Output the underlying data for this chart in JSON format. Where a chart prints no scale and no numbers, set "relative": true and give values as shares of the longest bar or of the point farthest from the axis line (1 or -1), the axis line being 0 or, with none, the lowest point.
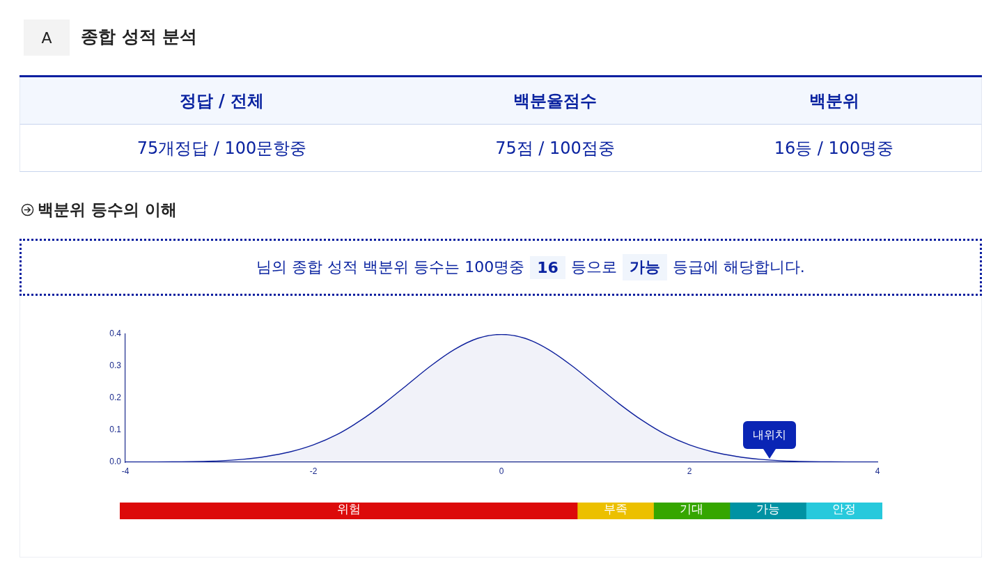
{
  "chart_data": [
    {
      "type": "area",
      "title": "종합 성적 분석",
      "subtitle": "백분위 등수의 이해",
      "annotations": [
        "A",
        "정답 / 전체",
        "백분율점수",
        "백분위",
        "75개정답 / 100문항중",
        "75점 / 100점중",
        "16등 / 100명중",
        "님의 종합 성적 백분위 등수는 100명중",
        "16",
        "등으로",
        "가능",
        "등급에 해당합니다.",
        {
          "text": "내위치",
          "x": 2.85,
          "y": 0.01
        }
      ],
      "x": [
        -4,
        -3.5,
        -3,
        -2.75,
        -2.5,
        -2.25,
        -2,
        -1.75,
        -1.5,
        -1.25,
        -1,
        -0.75,
        -0.5,
        -0.25,
        0,
        0.25,
        0.5,
        0.75,
        1,
        1.25,
        1.5,
        1.75,
        2,
        2.25,
        2.5,
        2.75,
        3,
        3.5,
        4
      ],
      "series": [
        {
          "color": "#0d1f9c",
          "values": [
            0,
            0.001,
            0.004,
            0.009,
            0.018,
            0.032,
            0.054,
            0.086,
            0.13,
            0.183,
            0.242,
            0.301,
            0.352,
            0.387,
            0.399,
            0.387,
            0.352,
            0.301,
            0.242,
            0.183,
            0.13,
            0.086,
            0.054,
            0.032,
            0.018,
            0.009,
            0.004,
            0.001,
            0
          ]
        }
      ],
      "xlim": [
        -4,
        4
      ],
      "ylim": [
        0,
        0.4
      ],
      "xticks": [
        -4,
        -2,
        0,
        2,
        4
      ],
      "yticks": [
        {
          "value": 0,
          "label": "0.0"
        },
        0.1,
        0.2,
        0.3,
        0.4
      ],
      "marker": "none"
    },
    {
      "type": "bar",
      "orientation": "horizontal",
      "stacked": true,
      "relative": true,
      "tick_labels": false,
      "categories": [
        null
      ],
      "series": [
        {
          "name": "위험",
          "color": "#dc0a0a",
          "values": [
            0.6
          ]
        },
        {
          "name": "부족",
          "color": "#ecc000",
          "values": [
            0.1
          ]
        },
        {
          "name": "기대",
          "color": "#35a600",
          "values": [
            0.1
          ]
        },
        {
          "name": "가능",
          "color": "#0092a3",
          "values": [
            0.1
          ]
        },
        {
          "name": "안정",
          "color": "#27c9dc",
          "values": [
            0.1
          ]
        }
      ]
    }
  ]
}
